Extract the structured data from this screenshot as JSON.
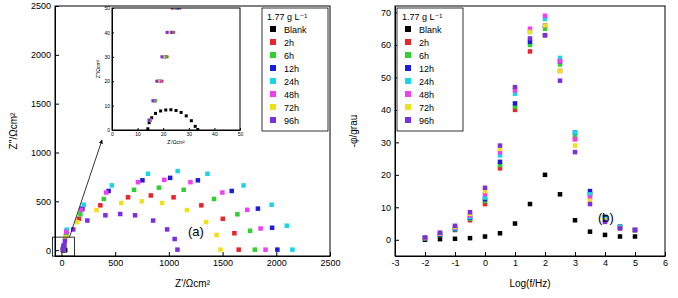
{
  "chart_data": [
    {
      "type": "scatter",
      "panel_label": "(a)",
      "x_label": "Z'/Ωcm²",
      "y_label": "Z''/Ωcm²",
      "legend_title": "1.77 g L⁻¹",
      "legend": "upper right",
      "marker": "square",
      "xlim": [
        -60,
        2500
      ],
      "ylim": [
        -60,
        2500
      ],
      "xticks": [
        0,
        500,
        1000,
        1500,
        2000,
        2500
      ],
      "yticks": [
        0,
        500,
        1000,
        1500,
        2000,
        2500
      ],
      "series": [
        {
          "name": "Blank",
          "color": "#000000",
          "x": [
            14,
            14.5,
            15.5,
            17,
            19,
            21,
            23,
            25,
            27,
            29,
            31,
            32.5,
            33.5
          ],
          "values": [
            0.5,
            3,
            5,
            6.8,
            7.8,
            8.2,
            8.3,
            8,
            7.2,
            5.8,
            3.8,
            1.5,
            0.2
          ]
        },
        {
          "name": "2h",
          "color": "#e8252a",
          "x": [
            15,
            17,
            19.5,
            21.5,
            24,
            26.5,
            42,
            162,
            362,
            620,
            832,
            1044,
            1302,
            1502,
            1610,
            1650
          ],
          "values": [
            4,
            12,
            20,
            30,
            40,
            50,
            145,
            321,
            459,
            541,
            560,
            541,
            459,
            321,
            173,
            5
          ]
        },
        {
          "name": "6h",
          "color": "#2fd12f",
          "x": [
            15,
            17,
            19,
            21,
            23.5,
            26,
            44,
            176,
            394,
            676,
            907,
            1138,
            1420,
            1638,
            1756,
            1800
          ],
          "values": [
            4,
            12,
            20,
            30,
            40,
            50,
            166,
            367,
            524,
            618,
            640,
            618,
            524,
            367,
            198,
            5
          ]
        },
        {
          "name": "12h",
          "color": "#1c1cdc",
          "x": [
            15,
            16.5,
            18.5,
            20.5,
            23,
            25.5,
            48,
            195,
            439,
            754,
            1012,
            1270,
            1585,
            1829,
            1961,
            2010
          ],
          "values": [
            4,
            12,
            20,
            30,
            40,
            50,
            192,
            425,
            606,
            715,
            740,
            715,
            606,
            425,
            229,
            5
          ]
        },
        {
          "name": "24h",
          "color": "#18d6ea",
          "x": [
            15,
            16.5,
            18,
            20,
            22.5,
            25,
            50,
            207,
            469,
            805,
            1082,
            1359,
            1695,
            1957,
            2098,
            2150
          ],
          "values": [
            4,
            12,
            20,
            30,
            40,
            50,
            210,
            465,
            663,
            782,
            810,
            782,
            663,
            465,
            250,
            5
          ]
        },
        {
          "name": "48h",
          "color": "#f03ef0",
          "x": [
            14.5,
            16.5,
            18.5,
            20.5,
            22.5,
            24.5,
            46,
            185,
            416,
            713,
            957,
            1201,
            1498,
            1729,
            1854,
            1900
          ],
          "values": [
            4,
            12,
            20,
            30,
            40,
            50,
            186,
            413,
            590,
            696,
            720,
            696,
            590,
            413,
            222,
            5
          ]
        },
        {
          "name": "72h",
          "color": "#f0e01c",
          "x": [
            14.5,
            16,
            18,
            20,
            22,
            24,
            39,
            147,
            326,
            557,
            747,
            937,
            1168,
            1347,
            1444,
            1480
          ],
          "values": [
            4,
            12,
            20,
            30,
            40,
            50,
            130,
            287,
            410,
            483,
            500,
            483,
            410,
            287,
            155,
            5
          ]
        },
        {
          "name": "96h",
          "color": "#7b2fe0",
          "x": [
            14.5,
            16,
            17.5,
            19.5,
            21.5,
            23.5,
            32,
            110,
            241,
            409,
            547,
            685,
            853,
            984,
            1054,
            1080
          ],
          "values": [
            4,
            12,
            20,
            30,
            40,
            50,
            96,
            212,
            303,
            357,
            370,
            357,
            303,
            212,
            114,
            5
          ]
        }
      ],
      "inset": {
        "x_label": "Z'/Ωcm²",
        "y_label": "Z''/Ωcm²",
        "xlim": [
          0,
          50
        ],
        "ylim": [
          0,
          50
        ],
        "xticks": [
          0,
          10,
          20,
          30,
          40,
          50
        ],
        "yticks": [
          0,
          10,
          20,
          30,
          40,
          50
        ]
      }
    },
    {
      "type": "scatter",
      "panel_label": "(b)",
      "x_label": "Log(f/Hz)",
      "y_label": "-φ/grau",
      "legend_title": "1.77 g L⁻¹",
      "legend": "upper left",
      "marker": "square",
      "xlim": [
        -3,
        6
      ],
      "ylim": [
        -5,
        72
      ],
      "xticks": [
        -3,
        -2,
        -1,
        0,
        1,
        2,
        3,
        4,
        5,
        6
      ],
      "yticks": [
        0,
        10,
        20,
        30,
        40,
        50,
        60,
        70
      ],
      "x": [
        -2,
        -1.5,
        -1,
        -0.5,
        0,
        0.5,
        1,
        1.5,
        2,
        2.5,
        3,
        3.5,
        4,
        4.5,
        5
      ],
      "series": [
        {
          "name": "Blank",
          "color": "#000000",
          "values": [
            0,
            0.2,
            0.3,
            0.5,
            1,
            2,
            5,
            11,
            20,
            14,
            6,
            2.5,
            1.5,
            1,
            1
          ]
        },
        {
          "name": "2h",
          "color": "#e8252a",
          "values": [
            0.5,
            1.5,
            3,
            6,
            11,
            22,
            40,
            58,
            63,
            52,
            31,
            14,
            7,
            4,
            3
          ]
        },
        {
          "name": "6h",
          "color": "#2fd12f",
          "values": [
            0.5,
            1.5,
            3.2,
            6.5,
            12,
            23,
            41,
            60,
            65,
            54,
            32,
            14,
            7,
            4,
            3
          ]
        },
        {
          "name": "12h",
          "color": "#1c1cdc",
          "values": [
            0.5,
            1.6,
            3.3,
            6.8,
            12.5,
            24,
            42,
            61,
            66,
            55,
            33,
            15,
            7,
            4,
            3
          ]
        },
        {
          "name": "24h",
          "color": "#18d6ea",
          "values": [
            0.5,
            1.8,
            3.5,
            7,
            13,
            26,
            45,
            64,
            68,
            56,
            33,
            14,
            6.5,
            4,
            3
          ]
        },
        {
          "name": "48h",
          "color": "#f03ef0",
          "values": [
            0.6,
            1.9,
            3.8,
            7.5,
            14,
            27,
            46,
            65,
            69,
            55,
            31,
            13,
            6,
            3.5,
            3
          ]
        },
        {
          "name": "72h",
          "color": "#f0e01c",
          "values": [
            0.6,
            2,
            4,
            8,
            15,
            28,
            47,
            64,
            66,
            52,
            29,
            12,
            6,
            3.5,
            3
          ]
        },
        {
          "name": "96h",
          "color": "#7b2fe0",
          "values": [
            0.7,
            2.2,
            4.3,
            8.5,
            16,
            29,
            47,
            62,
            63,
            49,
            27,
            11,
            5.5,
            3.5,
            3
          ]
        }
      ]
    }
  ]
}
